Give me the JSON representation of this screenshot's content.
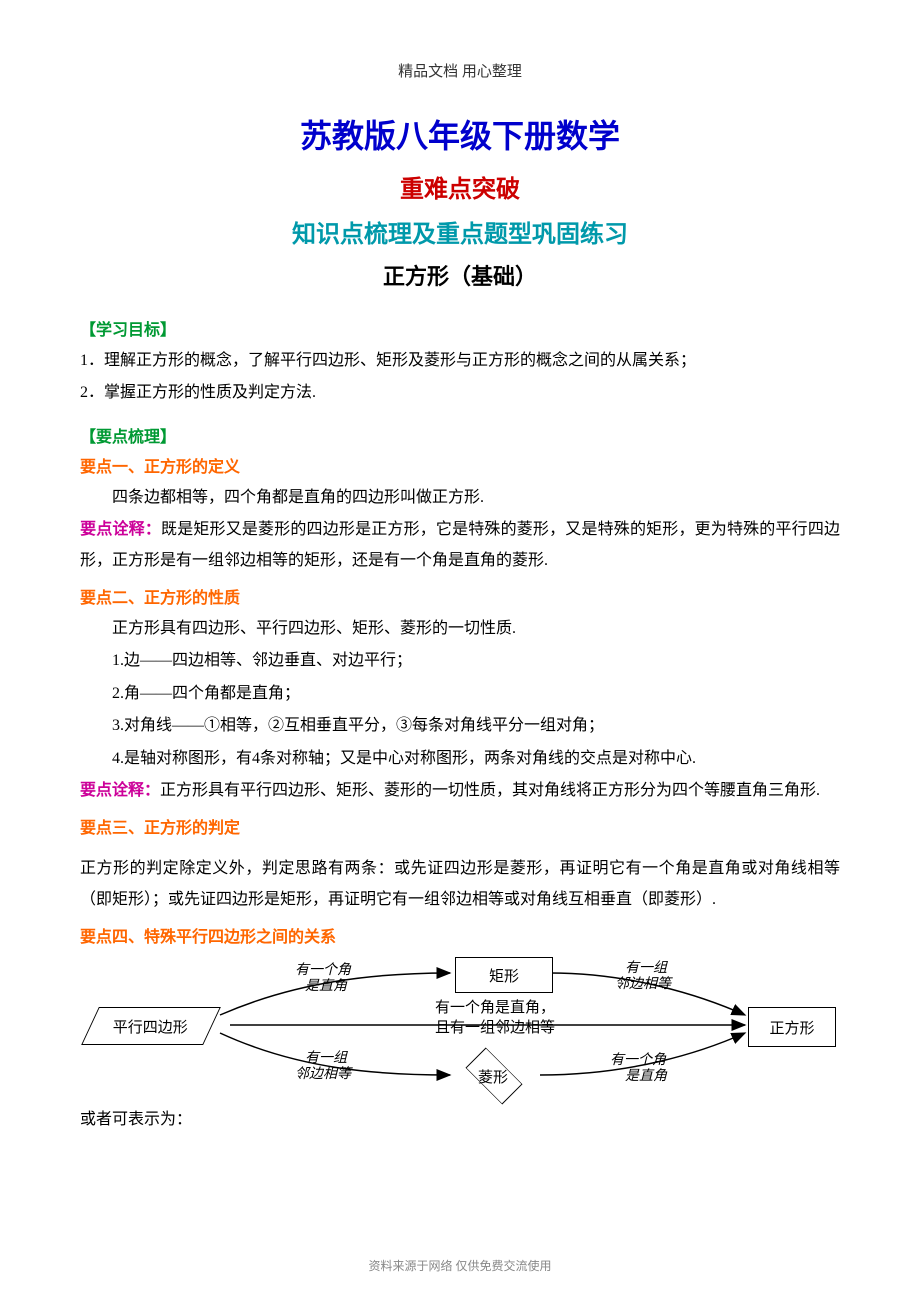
{
  "header": "精品文档 用心整理",
  "titles": {
    "main": "苏教版八年级下册数学",
    "sub1": "重难点突破",
    "sub2": "知识点梳理及重点题型巩固练习",
    "sub3": "正方形（基础）"
  },
  "section_goals": {
    "heading": "【学习目标】",
    "items": [
      "1．理解正方形的概念，了解平行四边形、矩形及菱形与正方形的概念之间的从属关系；",
      "2．掌握正方形的性质及判定方法."
    ]
  },
  "section_points_heading": "【要点梳理】",
  "point1": {
    "heading": "要点一、正方形的定义",
    "lines": [
      "四条边都相等，四个角都是直角的四边形叫做正方形."
    ],
    "note_label": "要点诠释：",
    "note": "既是矩形又是菱形的四边形是正方形，它是特殊的菱形，又是特殊的矩形，更为特殊的平行四边形，正方形是有一组邻边相等的矩形，还是有一个角是直角的菱形."
  },
  "point2": {
    "heading": "要点二、正方形的性质",
    "intro": "正方形具有四边形、平行四边形、矩形、菱形的一切性质.",
    "items": [
      "1.边——四边相等、邻边垂直、对边平行；",
      "2.角——四个角都是直角；",
      "3.对角线——①相等，②互相垂直平分，③每条对角线平分一组对角；",
      "4.是轴对称图形，有4条对称轴；又是中心对称图形，两条对角线的交点是对称中心."
    ],
    "note_label": "要点诠释：",
    "note": "正方形具有平行四边形、矩形、菱形的一切性质，其对角线将正方形分为四个等腰直角三角形."
  },
  "point3": {
    "heading": "要点三、正方形的判定",
    "text": "正方形的判定除定义外，判定思路有两条：或先证四边形是菱形，再证明它有一个角是直角或对角线相等（即矩形）；或先证四边形是矩形，再证明它有一组邻边相等或对角线互相垂直（即菱形）."
  },
  "point4": {
    "heading": "要点四、特殊平行四边形之间的关系"
  },
  "diagram": {
    "nodes": {
      "parallelogram": "平行四边形",
      "rectangle": "矩形",
      "rhombus": "菱形",
      "square": "正方形"
    },
    "center_text": "有一个角是直角，\n且有一组邻边相等",
    "arrow_labels": {
      "tl1": "有一个角",
      "tl2": "是直角",
      "bl1": "有一组",
      "bl2": "邻边相等",
      "tr1": "有一组",
      "tr2": "邻边相等",
      "br1": "有一个角",
      "br2": "是直角"
    }
  },
  "after_diagram": "或者可表示为：",
  "footer": "资料来源于网络 仅供免费交流使用"
}
